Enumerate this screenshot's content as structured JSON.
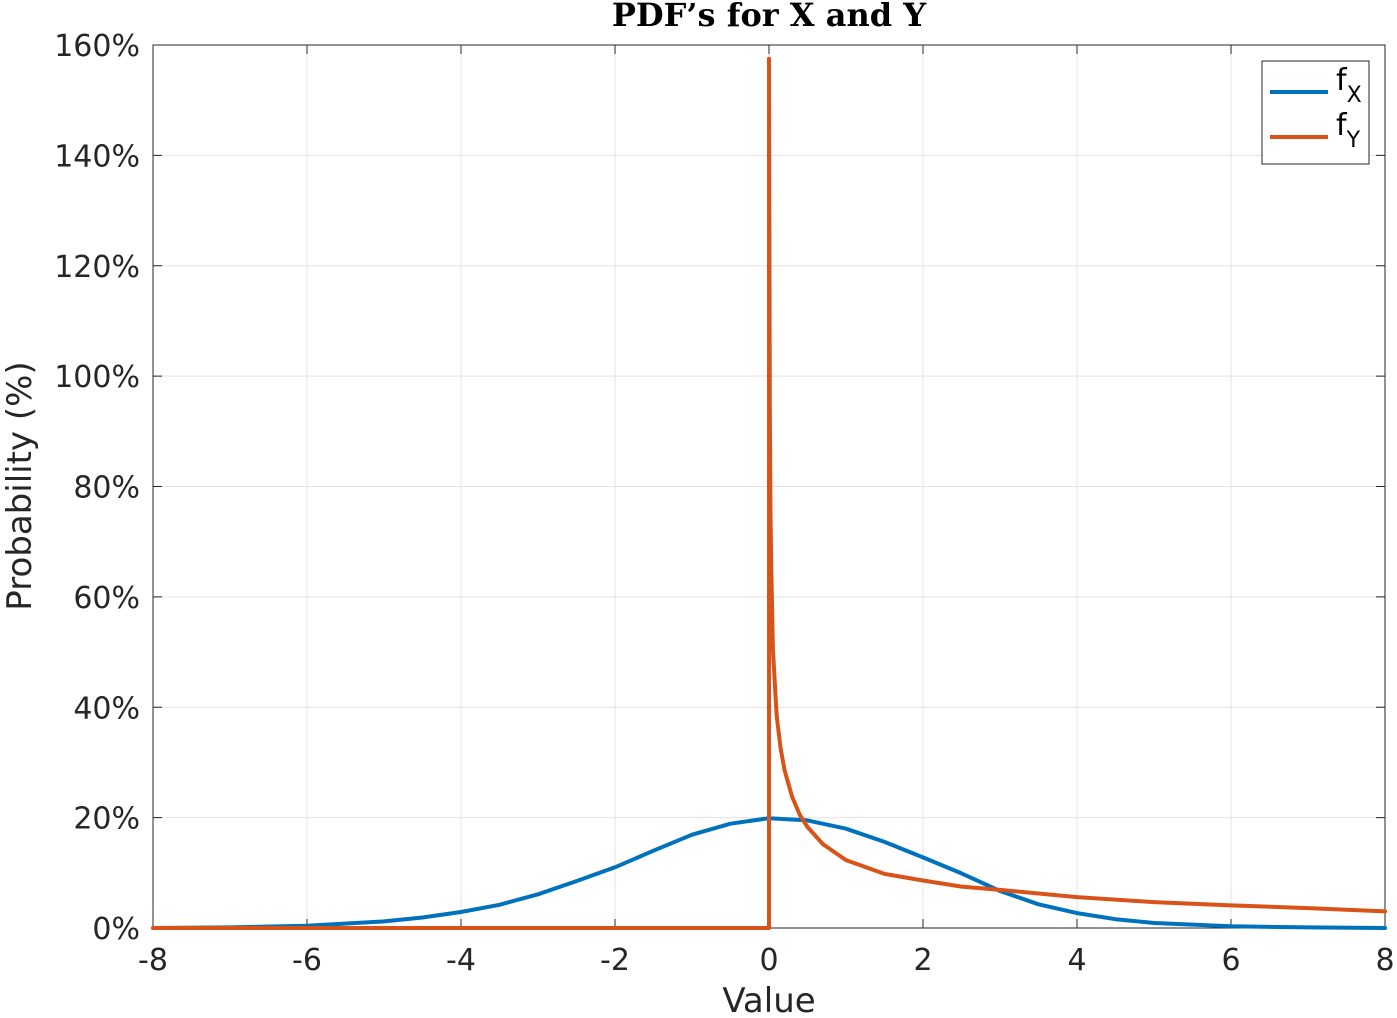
{
  "chart_data": {
    "type": "line",
    "title": "PDF’s for X and Y",
    "xlabel": "Value",
    "ylabel": "Probability (%)",
    "xlim": [
      -8,
      8
    ],
    "ylim": [
      0,
      160
    ],
    "x_ticks": [
      -8,
      -6,
      -4,
      -2,
      0,
      2,
      4,
      6,
      8
    ],
    "x_tick_labels": [
      "-8",
      "-6",
      "-4",
      "-2",
      "0",
      "2",
      "4",
      "6",
      "8"
    ],
    "y_ticks": [
      0,
      20,
      40,
      60,
      80,
      100,
      120,
      140,
      160
    ],
    "y_tick_labels": [
      "0%",
      "20%",
      "40%",
      "60%",
      "80%",
      "100%",
      "120%",
      "140%",
      "160%"
    ],
    "grid": true,
    "legend_position": "top-right",
    "series": [
      {
        "name": "fX",
        "label_main": "f",
        "label_sub": "X",
        "color": "#0072BD",
        "x": [
          -8,
          -7,
          -6,
          -5,
          -4.5,
          -4,
          -3.5,
          -3,
          -2.5,
          -2,
          -1.5,
          -1,
          -0.5,
          0,
          0.5,
          1,
          1.5,
          2,
          2.5,
          3,
          3.5,
          4,
          4.5,
          5,
          6,
          7,
          8
        ],
        "y": [
          0.0,
          0.1,
          0.4,
          1.2,
          1.9,
          2.9,
          4.2,
          6.1,
          8.5,
          11.0,
          14.0,
          16.9,
          18.9,
          19.9,
          19.5,
          18.0,
          15.6,
          12.8,
          9.9,
          6.7,
          4.3,
          2.7,
          1.6,
          0.9,
          0.3,
          0.1,
          0.0
        ]
      },
      {
        "name": "fY",
        "label_main": "f",
        "label_sub": "Y",
        "color": "#D95319",
        "x": [
          -8,
          0,
          0,
          0.01,
          0.02,
          0.03,
          0.05,
          0.1,
          0.15,
          0.2,
          0.3,
          0.4,
          0.5,
          0.7,
          1,
          1.5,
          2,
          2.5,
          3,
          4,
          5,
          6,
          7,
          8
        ],
        "y": [
          0,
          0,
          157.5,
          95,
          75,
          65,
          50.5,
          38.4,
          32.6,
          28.7,
          23.8,
          20.5,
          18.3,
          15.2,
          12.3,
          9.8,
          8.6,
          7.5,
          6.9,
          5.6,
          4.7,
          4.1,
          3.6,
          3.0
        ]
      }
    ]
  }
}
